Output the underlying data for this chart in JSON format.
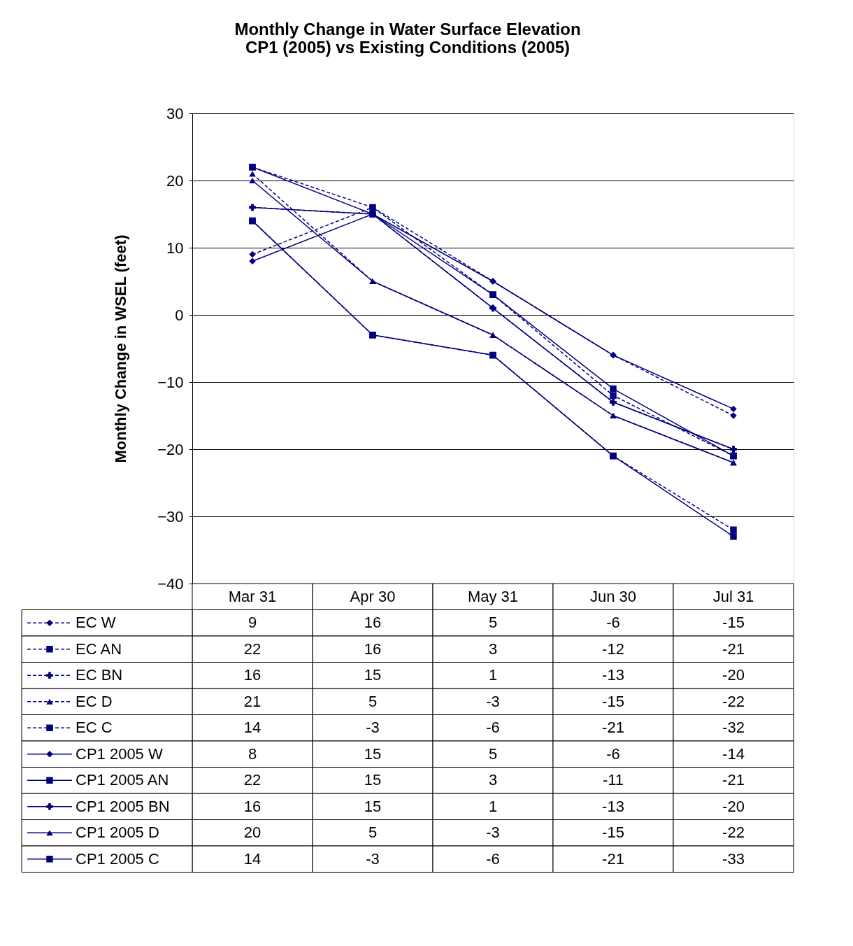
{
  "chart_data": {
    "type": "line",
    "title": "Monthly Change in Water Surface Elevation\nCP1 (2005) vs Existing Conditions (2005)",
    "ylabel": "Monthly Change in WSEL (feet)",
    "categories": [
      "Mar 31",
      "Apr 30",
      "May 31",
      "Jun 30",
      "Jul 31"
    ],
    "ylim": [
      -40,
      30
    ],
    "yticks": [
      -40,
      -30,
      -20,
      -10,
      0,
      10,
      20,
      30
    ],
    "grid": "y",
    "data_labels": true,
    "legend": "bottom",
    "series": [
      {
        "name": "EC W",
        "color": "#000080",
        "marker": "diamond",
        "line_style": "dashed",
        "values": [
          9,
          16,
          5,
          -6,
          -15
        ]
      },
      {
        "name": "EC AN",
        "color": "#000080",
        "marker": "square",
        "line_style": "dashed",
        "values": [
          22,
          16,
          3,
          -12,
          -21
        ]
      },
      {
        "name": "EC BN",
        "color": "#000080",
        "marker": "cross",
        "line_style": "dashed",
        "values": [
          16,
          15,
          1,
          -13,
          -20
        ]
      },
      {
        "name": "EC D",
        "color": "#000080",
        "marker": "triangle",
        "line_style": "dashed",
        "values": [
          21,
          5,
          -3,
          -15,
          -22
        ]
      },
      {
        "name": "EC C",
        "color": "#000080",
        "marker": "square",
        "line_style": "dashed",
        "values": [
          14,
          -3,
          -6,
          -21,
          -32
        ]
      },
      {
        "name": "CP1 2005 W",
        "color": "#000080",
        "marker": "diamond",
        "line_style": "solid",
        "values": [
          8,
          15,
          5,
          -6,
          -14
        ]
      },
      {
        "name": "CP1 2005 AN",
        "color": "#000080",
        "marker": "square",
        "line_style": "solid",
        "values": [
          22,
          15,
          3,
          -11,
          -21
        ]
      },
      {
        "name": "CP1 2005 BN",
        "color": "#000080",
        "marker": "cross",
        "line_style": "solid",
        "values": [
          16,
          15,
          1,
          -13,
          -20
        ]
      },
      {
        "name": "CP1 2005 D",
        "color": "#000080",
        "marker": "triangle",
        "line_style": "solid",
        "values": [
          20,
          5,
          -3,
          -15,
          -22
        ]
      },
      {
        "name": "CP1 2005 C",
        "color": "#000080",
        "marker": "square",
        "line_style": "solid",
        "values": [
          14,
          -3,
          -6,
          -21,
          -33
        ]
      }
    ]
  }
}
